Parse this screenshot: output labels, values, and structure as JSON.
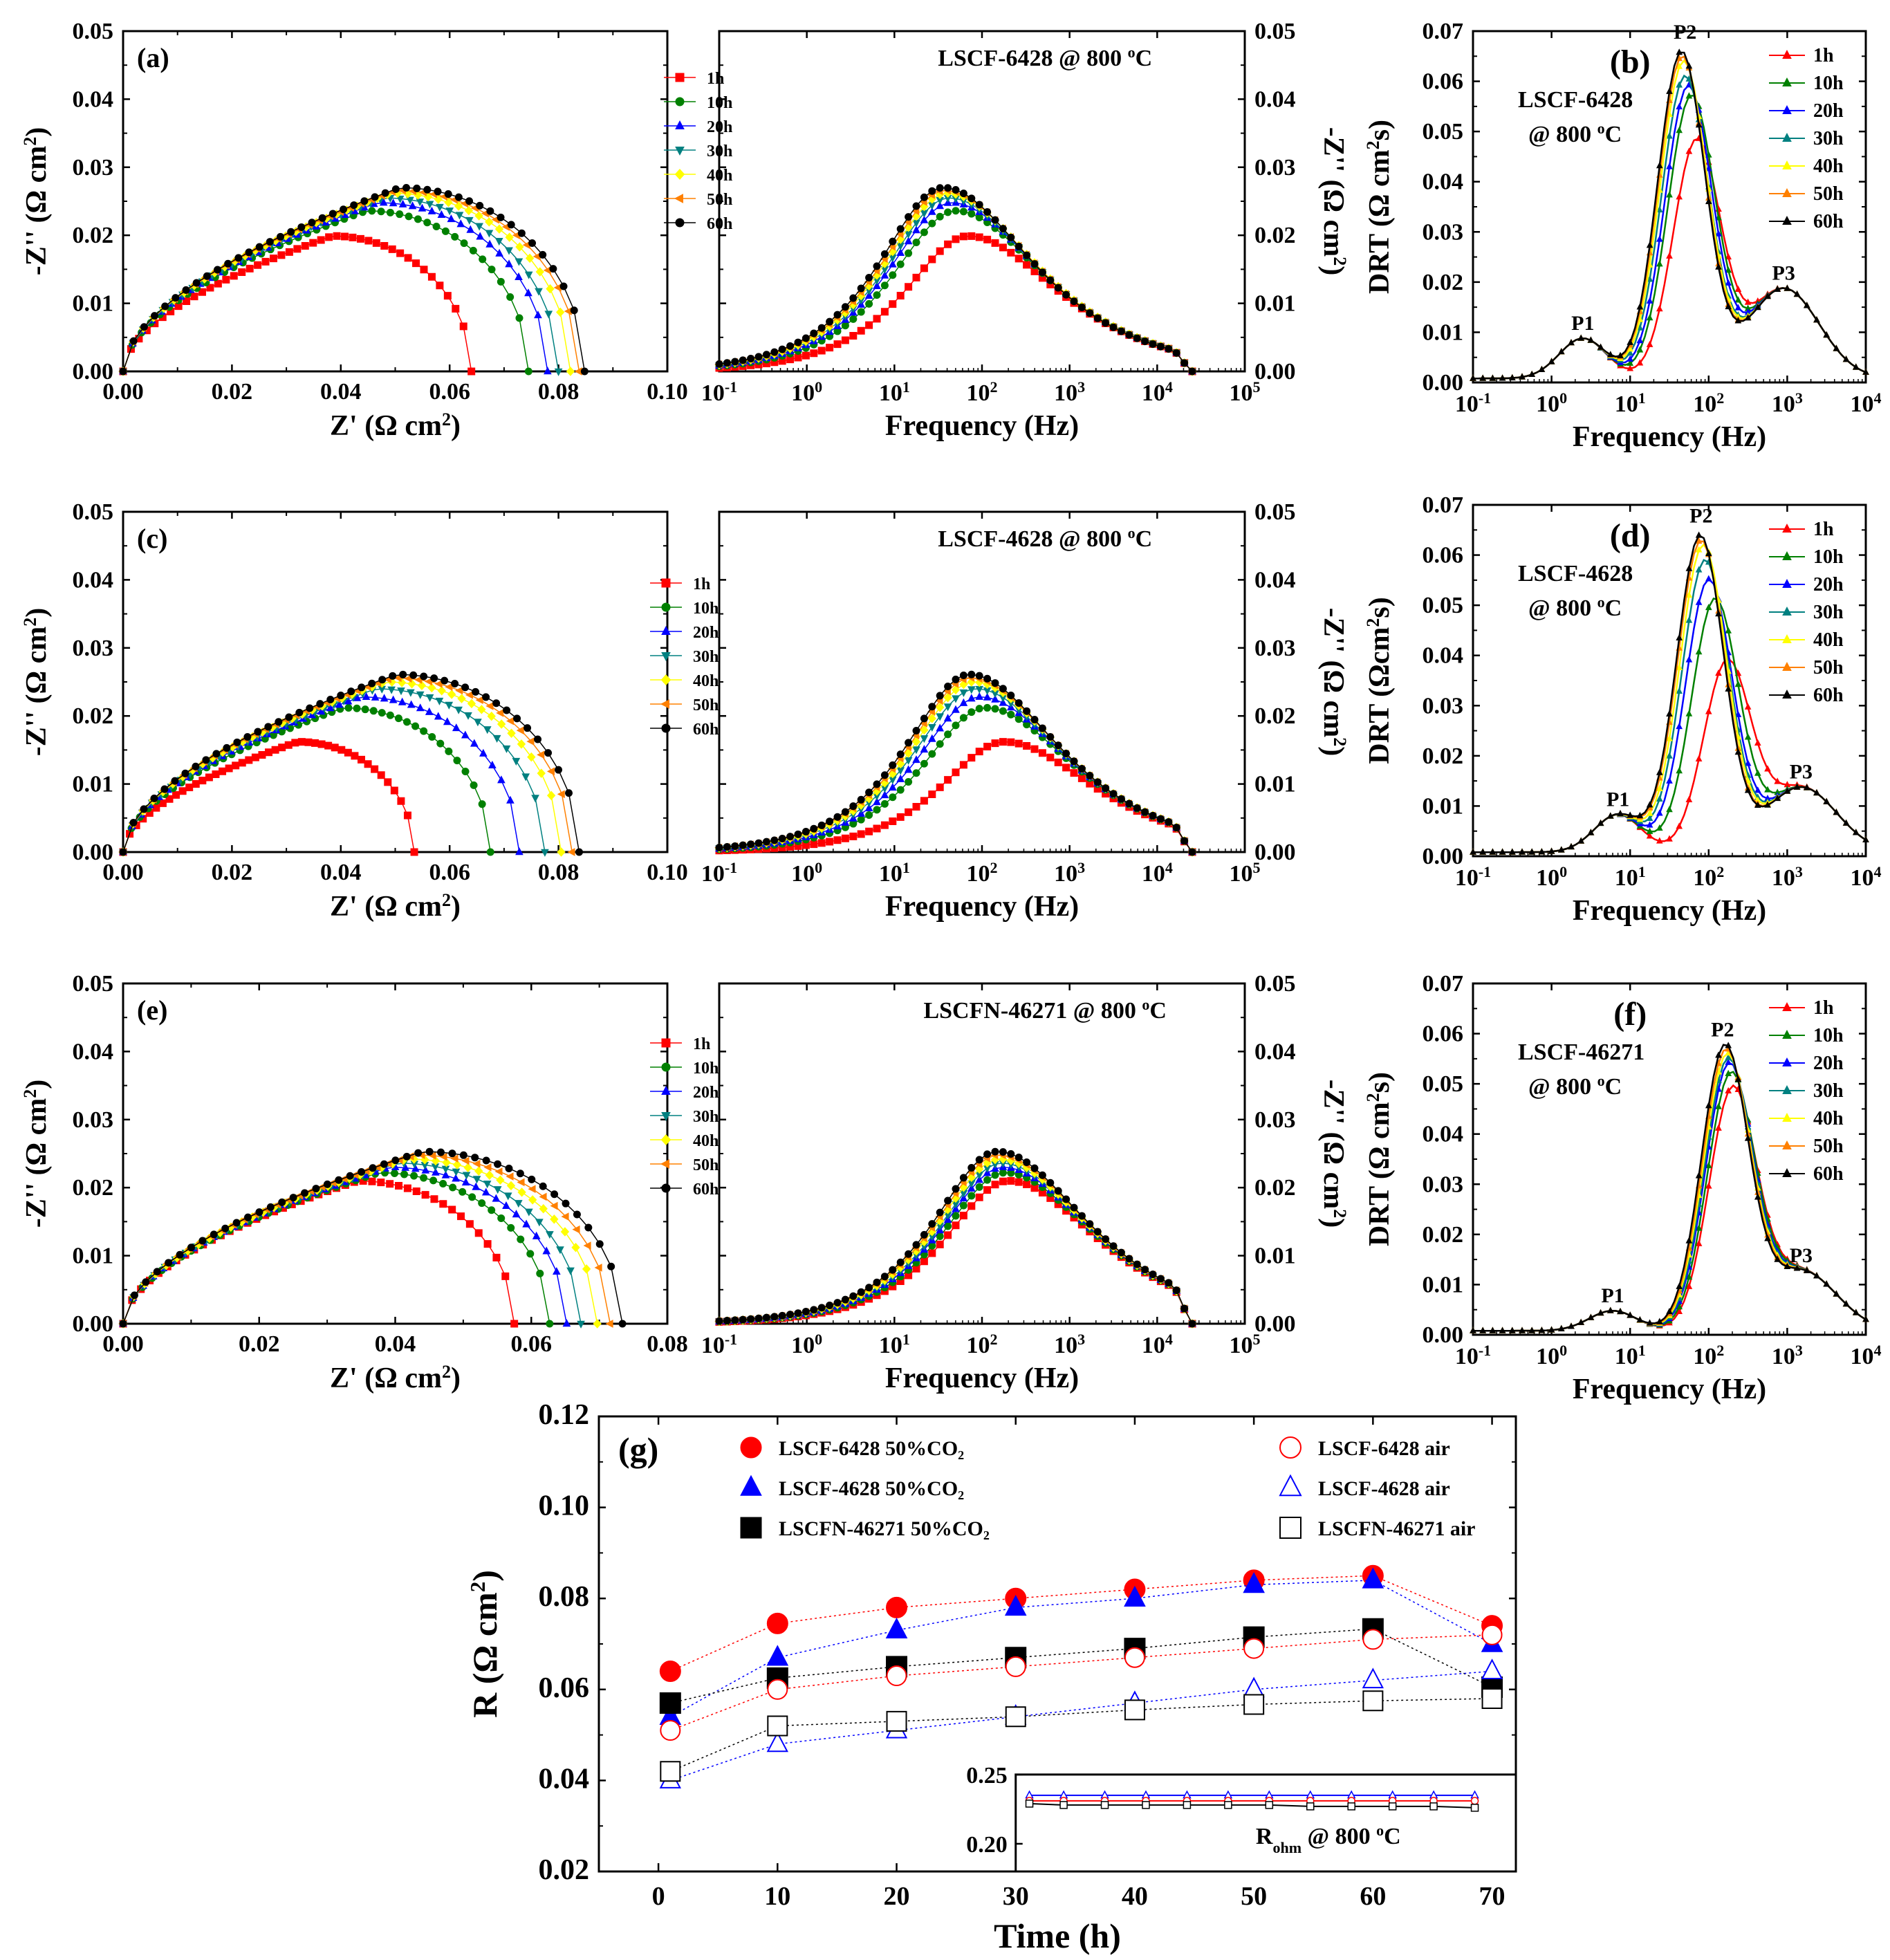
{
  "figure": {
    "description_free": true
  },
  "colors": {
    "1h": "#ff0000",
    "10h": "#008000",
    "20h": "#0000ff",
    "30h": "#008080",
    "40h": "#ffff00",
    "50h": "#ff8000",
    "60h": "#000000",
    "LSCF-6428": "#ff0000",
    "LSCF-4628": "#0000ff",
    "LSCFN-46271": "#000000",
    "P1": "#ff0000",
    "P2": "#008000",
    "P3": "#0000ff"
  },
  "chart_data": [
    {
      "id": "nyq_a",
      "type": "scatter",
      "panel_label": "(a)",
      "xlabel": "Z' (Ω cm²)",
      "ylabel": "-Z'' (Ω cm²)",
      "xlim": [
        0,
        0.1
      ],
      "ylim": [
        0,
        0.05
      ],
      "x_ticks": [
        "0.00",
        "0.02",
        "0.04",
        "0.06",
        "0.08",
        "0.10"
      ],
      "y_ticks": [
        "0.00",
        "0.01",
        "0.02",
        "0.03",
        "0.04",
        "0.05"
      ],
      "series": [
        {
          "name": "1h",
          "R": 0.064,
          "peak": 0.0199
        },
        {
          "name": "10h",
          "R": 0.0745,
          "peak": 0.0236
        },
        {
          "name": "20h",
          "R": 0.078,
          "peak": 0.0248
        },
        {
          "name": "30h",
          "R": 0.08,
          "peak": 0.0255
        },
        {
          "name": "40h",
          "R": 0.0822,
          "peak": 0.0262
        },
        {
          "name": "50h",
          "R": 0.0838,
          "peak": 0.0266
        },
        {
          "name": "60h",
          "R": 0.0848,
          "peak": 0.027
        }
      ]
    },
    {
      "id": "bode_a",
      "type": "line",
      "title": "LSCF-6428 @ 800 °C",
      "xlabel": "Frequency (Hz)",
      "ylabel": "-Z'' (Ω cm²)",
      "x_log_range": [
        -1,
        5
      ],
      "ylim": [
        0,
        0.05
      ],
      "y_ticks": [
        "0.00",
        "0.01",
        "0.02",
        "0.03",
        "0.04",
        "0.05"
      ],
      "series": [
        {
          "name": "1h",
          "peak": 0.0199,
          "peak_freq": 70
        },
        {
          "name": "10h",
          "peak": 0.0236,
          "peak_freq": 50
        },
        {
          "name": "20h",
          "peak": 0.0248,
          "peak_freq": 45
        },
        {
          "name": "30h",
          "peak": 0.0255,
          "peak_freq": 42
        },
        {
          "name": "40h",
          "peak": 0.0262,
          "peak_freq": 40
        },
        {
          "name": "50h",
          "peak": 0.0266,
          "peak_freq": 38
        },
        {
          "name": "60h",
          "peak": 0.027,
          "peak_freq": 36
        }
      ]
    },
    {
      "id": "drt_b",
      "type": "line",
      "panel_label": "(b)",
      "annotation": [
        "LSCF-6428",
        "@ 800 °C"
      ],
      "xlabel": "Frequency (Hz)",
      "ylabel": "DRT (Ω cm²s)",
      "x_log_range": [
        -1,
        4
      ],
      "ylim": [
        0,
        0.07
      ],
      "y_ticks": [
        "0.00",
        "0.01",
        "0.02",
        "0.03",
        "0.04",
        "0.05",
        "0.06",
        "0.07"
      ],
      "peaks": [
        {
          "label": "P1",
          "freq": 2.5,
          "value": 0.008
        },
        {
          "label": "P2",
          "freq": 50,
          "value": 0.066
        },
        {
          "label": "P3",
          "freq": 900,
          "value": 0.018
        }
      ],
      "series": [
        {
          "name": "1h",
          "p2": 0.047,
          "f2": 70
        },
        {
          "name": "10h",
          "p2": 0.056,
          "f2": 60
        },
        {
          "name": "20h",
          "p2": 0.058,
          "f2": 55
        },
        {
          "name": "30h",
          "p2": 0.06,
          "f2": 50
        },
        {
          "name": "40h",
          "p2": 0.063,
          "f2": 48
        },
        {
          "name": "50h",
          "p2": 0.064,
          "f2": 46
        },
        {
          "name": "60h",
          "p2": 0.065,
          "f2": 45
        }
      ]
    },
    {
      "id": "nyq_c",
      "type": "scatter",
      "panel_label": "(c)",
      "xlabel": "Z' (Ω cm²)",
      "ylabel": "-Z'' (Ω cm²)",
      "xlim": [
        0,
        0.1
      ],
      "ylim": [
        0,
        0.05
      ],
      "x_ticks": [
        "0.00",
        "0.02",
        "0.04",
        "0.06",
        "0.08",
        "0.10"
      ],
      "y_ticks": [
        "0.00",
        "0.01",
        "0.02",
        "0.03",
        "0.04",
        "0.05"
      ],
      "series": [
        {
          "name": "1h",
          "R": 0.0535,
          "peak": 0.0162
        },
        {
          "name": "10h",
          "R": 0.0675,
          "peak": 0.0212
        },
        {
          "name": "20h",
          "R": 0.0728,
          "peak": 0.0228
        },
        {
          "name": "30h",
          "R": 0.0775,
          "peak": 0.024
        },
        {
          "name": "40h",
          "R": 0.0805,
          "peak": 0.025
        },
        {
          "name": "50h",
          "R": 0.0825,
          "peak": 0.0256
        },
        {
          "name": "60h",
          "R": 0.0838,
          "peak": 0.0261
        }
      ]
    },
    {
      "id": "bode_c",
      "type": "line",
      "title": "LSCF-4628 @ 800 °C",
      "xlabel": "Frequency (Hz)",
      "ylabel": "-Z'' (Ω cm²)",
      "x_log_range": [
        -1,
        5
      ],
      "ylim": [
        0,
        0.05
      ],
      "y_ticks": [
        "0.00",
        "0.01",
        "0.02",
        "0.03",
        "0.04",
        "0.05"
      ],
      "series": [
        {
          "name": "1h",
          "peak": 0.0162,
          "peak_freq": 180
        },
        {
          "name": "10h",
          "peak": 0.0212,
          "peak_freq": 110
        },
        {
          "name": "20h",
          "peak": 0.0228,
          "peak_freq": 95
        },
        {
          "name": "30h",
          "peak": 0.024,
          "peak_freq": 85
        },
        {
          "name": "40h",
          "peak": 0.025,
          "peak_freq": 80
        },
        {
          "name": "50h",
          "peak": 0.0256,
          "peak_freq": 75
        },
        {
          "name": "60h",
          "peak": 0.0261,
          "peak_freq": 72
        }
      ]
    },
    {
      "id": "drt_d",
      "type": "line",
      "panel_label": "(d)",
      "annotation": [
        "LSCF-4628",
        "@ 800 °C"
      ],
      "xlabel": "Frequency (Hz)",
      "ylabel": "DRT (Ωcm²s)",
      "x_log_range": [
        -1,
        4
      ],
      "ylim": [
        0,
        0.07
      ],
      "y_ticks": [
        "0.00",
        "0.01",
        "0.02",
        "0.03",
        "0.04",
        "0.05",
        "0.06",
        "0.07"
      ],
      "peaks": [
        {
          "label": "P1",
          "freq": 7,
          "value": 0.0075
        },
        {
          "label": "P2",
          "freq": 80,
          "value": 0.064
        },
        {
          "label": "P3",
          "freq": 1500,
          "value": 0.013
        }
      ],
      "series": [
        {
          "name": "1h",
          "p2": 0.037,
          "f2": 170
        },
        {
          "name": "10h",
          "p2": 0.05,
          "f2": 120
        },
        {
          "name": "20h",
          "p2": 0.054,
          "f2": 100
        },
        {
          "name": "30h",
          "p2": 0.058,
          "f2": 90
        },
        {
          "name": "40h",
          "p2": 0.061,
          "f2": 85
        },
        {
          "name": "50h",
          "p2": 0.062,
          "f2": 80
        },
        {
          "name": "60h",
          "p2": 0.063,
          "f2": 78
        }
      ]
    },
    {
      "id": "nyq_e",
      "type": "scatter",
      "panel_label": "(e)",
      "xlabel": "Z' (Ω cm²)",
      "ylabel": "-Z'' (Ω cm²)",
      "xlim": [
        0,
        0.08
      ],
      "ylim": [
        0,
        0.05
      ],
      "x_ticks": [
        "0.00",
        "0.02",
        "0.04",
        "0.06",
        "0.08"
      ],
      "y_ticks": [
        "0.00",
        "0.01",
        "0.02",
        "0.03",
        "0.04",
        "0.05"
      ],
      "series": [
        {
          "name": "1h",
          "R": 0.0575,
          "peak": 0.021
        },
        {
          "name": "10h",
          "R": 0.0627,
          "peak": 0.0222
        },
        {
          "name": "20h",
          "R": 0.0652,
          "peak": 0.023
        },
        {
          "name": "30h",
          "R": 0.0673,
          "peak": 0.0236
        },
        {
          "name": "40h",
          "R": 0.0697,
          "peak": 0.0242
        },
        {
          "name": "50h",
          "R": 0.0716,
          "peak": 0.0248
        },
        {
          "name": "60h",
          "R": 0.0734,
          "peak": 0.0253
        }
      ]
    },
    {
      "id": "bode_e",
      "type": "line",
      "title": "LSCFN-46271 @ 800 °C",
      "xlabel": "Frequency (Hz)",
      "ylabel": "-Z'' (Ω cm²)",
      "x_log_range": [
        -1,
        5
      ],
      "ylim": [
        0,
        0.05
      ],
      "y_ticks": [
        "0.00",
        "0.01",
        "0.02",
        "0.03",
        "0.04",
        "0.05"
      ],
      "series": [
        {
          "name": "1h",
          "peak": 0.021,
          "peak_freq": 200
        },
        {
          "name": "10h",
          "peak": 0.0222,
          "peak_freq": 185
        },
        {
          "name": "20h",
          "peak": 0.023,
          "peak_freq": 175
        },
        {
          "name": "30h",
          "peak": 0.0236,
          "peak_freq": 168
        },
        {
          "name": "40h",
          "peak": 0.0242,
          "peak_freq": 160
        },
        {
          "name": "50h",
          "peak": 0.0248,
          "peak_freq": 155
        },
        {
          "name": "60h",
          "peak": 0.0253,
          "peak_freq": 150
        }
      ]
    },
    {
      "id": "drt_f",
      "type": "line",
      "panel_label": "(f)",
      "annotation": [
        "LSCF-46271",
        "@ 800 °C"
      ],
      "xlabel": "Frequency (Hz)",
      "ylabel": "DRT (Ω cm²s)",
      "x_log_range": [
        -1,
        4
      ],
      "ylim": [
        0,
        0.07
      ],
      "y_ticks": [
        "0.00",
        "0.01",
        "0.02",
        "0.03",
        "0.04",
        "0.05",
        "0.06",
        "0.07"
      ],
      "peaks": [
        {
          "label": "P1",
          "freq": 6,
          "value": 0.004
        },
        {
          "label": "P2",
          "freq": 150,
          "value": 0.057
        },
        {
          "label": "P3",
          "freq": 1500,
          "value": 0.012
        }
      ],
      "series": [
        {
          "name": "1h",
          "p2": 0.047,
          "f2": 200
        },
        {
          "name": "10h",
          "p2": 0.05,
          "f2": 190
        },
        {
          "name": "20h",
          "p2": 0.052,
          "f2": 180
        },
        {
          "name": "30h",
          "p2": 0.053,
          "f2": 175
        },
        {
          "name": "40h",
          "p2": 0.054,
          "f2": 170
        },
        {
          "name": "50h",
          "p2": 0.055,
          "f2": 165
        },
        {
          "name": "60h",
          "p2": 0.056,
          "f2": 160
        }
      ]
    },
    {
      "id": "time_g",
      "type": "scatter",
      "panel_label": "(g)",
      "xlabel": "Time (h)",
      "ylabel": "R (Ω cm²)",
      "xlim": [
        -5,
        72
      ],
      "ylim": [
        0.02,
        0.12
      ],
      "x_ticks": [
        "0",
        "10",
        "20",
        "30",
        "40",
        "50",
        "60",
        "70"
      ],
      "y_ticks": [
        "0.02",
        "0.04",
        "0.06",
        "0.08",
        "0.10",
        "0.12"
      ],
      "x": [
        1,
        10,
        20,
        30,
        40,
        50,
        60,
        70
      ],
      "series": [
        {
          "name": "LSCF-6428 50%CO₂",
          "material": "LSCF-6428",
          "marker": "circle",
          "filled": true,
          "values": [
            0.064,
            0.0745,
            0.078,
            0.08,
            0.082,
            0.084,
            0.085,
            0.074
          ]
        },
        {
          "name": "LSCF-4628 50%CO₂",
          "material": "LSCF-4628",
          "marker": "triangle",
          "filled": true,
          "values": [
            0.054,
            0.067,
            0.073,
            0.078,
            0.08,
            0.083,
            0.084,
            0.07
          ]
        },
        {
          "name": "LSCFN-46271 50%CO₂",
          "material": "LSCFN-46271",
          "marker": "square",
          "filled": true,
          "values": [
            0.057,
            0.0625,
            0.065,
            0.067,
            0.069,
            0.0715,
            0.0733,
            0.0605
          ]
        },
        {
          "name": "LSCF-6428 air",
          "material": "LSCF-6428",
          "marker": "circle",
          "filled": false,
          "values": [
            0.051,
            0.06,
            0.063,
            0.065,
            0.067,
            0.069,
            0.071,
            0.072
          ]
        },
        {
          "name": "LSCF-4628 air",
          "material": "LSCF-4628",
          "marker": "triangle",
          "filled": false,
          "values": [
            0.04,
            0.048,
            0.051,
            0.054,
            0.057,
            0.06,
            0.062,
            0.064
          ]
        },
        {
          "name": "LSCFN-46271 air",
          "material": "LSCFN-46271",
          "marker": "square",
          "filled": false,
          "values": [
            0.042,
            0.052,
            0.053,
            0.054,
            0.0555,
            0.0567,
            0.0575,
            0.058
          ]
        }
      ],
      "inset": {
        "label": "R",
        "label_sub": "ohm",
        "label_suffix": " @ 800 °C",
        "ylim": [
          0.18,
          0.25
        ],
        "y_ticks": [
          "0.25",
          "0.20"
        ],
        "x": [
          1,
          6,
          12,
          18,
          24,
          30,
          36,
          42,
          48,
          54,
          60,
          66
        ],
        "series": [
          {
            "material": "LSCF-4628",
            "marker": "triangle",
            "values": [
              0.235,
              0.235,
              0.235,
              0.235,
              0.235,
              0.235,
              0.235,
              0.235,
              0.235,
              0.235,
              0.235,
              0.235
            ]
          },
          {
            "material": "LSCF-6428",
            "marker": "circle",
            "values": [
              0.231,
              0.231,
              0.231,
              0.231,
              0.231,
              0.231,
              0.231,
              0.231,
              0.231,
              0.231,
              0.231,
              0.231
            ]
          },
          {
            "material": "LSCFN-46271",
            "marker": "square",
            "values": [
              0.229,
              0.228,
              0.228,
              0.228,
              0.228,
              0.228,
              0.228,
              0.227,
              0.227,
              0.227,
              0.227,
              0.226
            ]
          }
        ]
      }
    }
  ]
}
